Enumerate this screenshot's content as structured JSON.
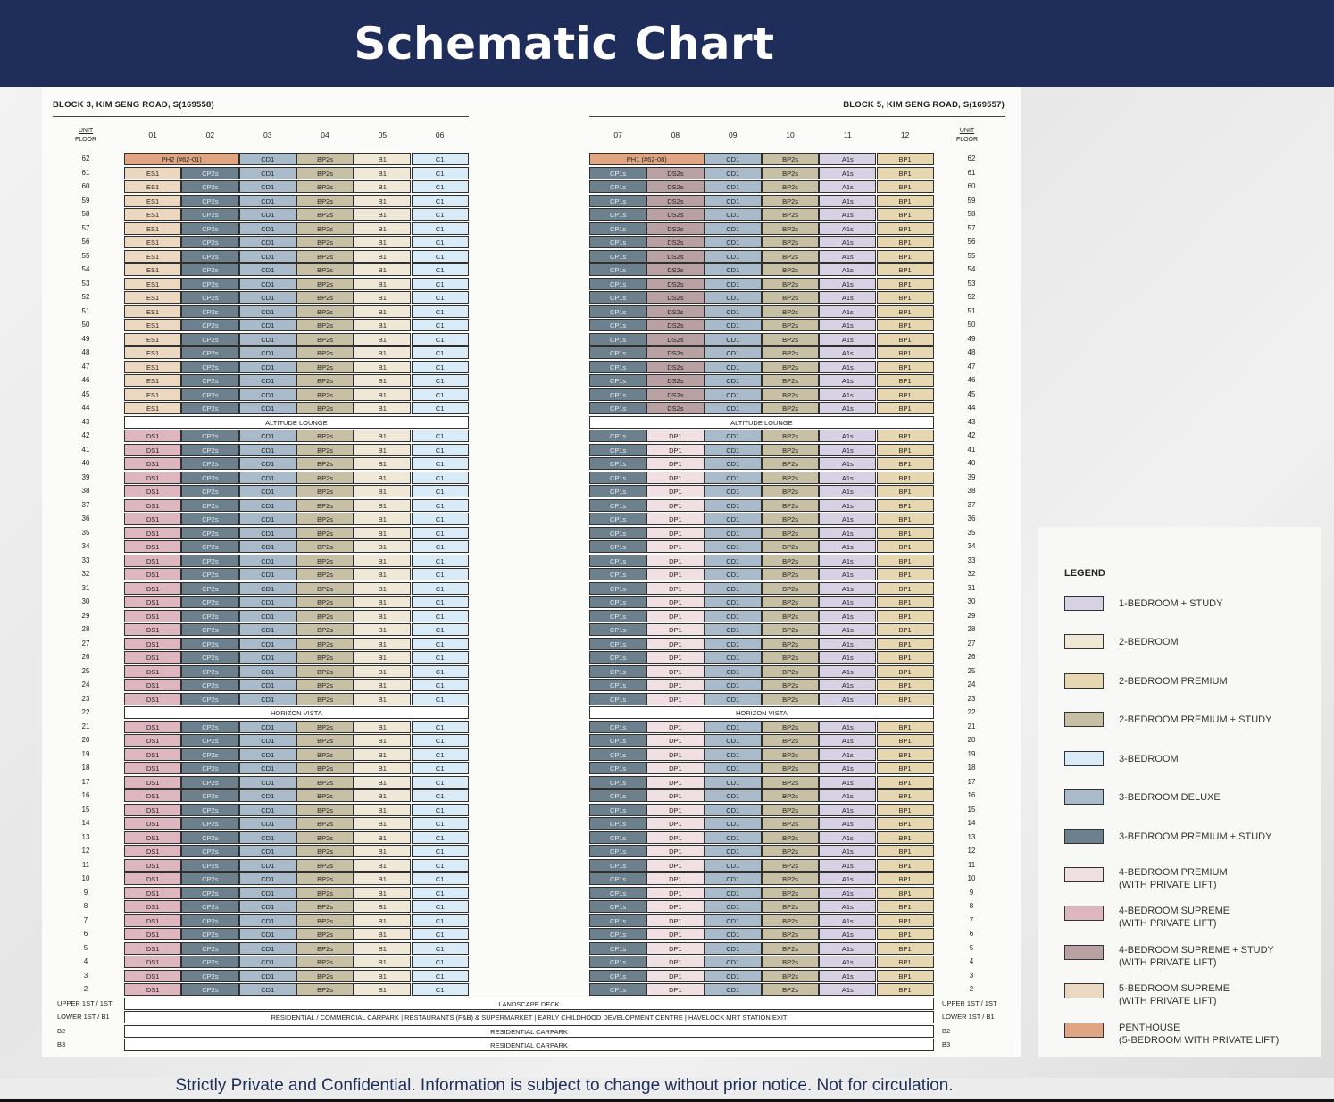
{
  "title": "Schematic Chart",
  "footer": "Strictly Private and Confidential. Information is subject to change without prior notice. Not for circulation.",
  "unit_floor_label": {
    "unit": "UNIT",
    "floor": "FLOOR"
  },
  "colors": {
    "header": "#1f2d5a",
    "A1s": "#d7d2e3",
    "B1": "#efe8d6",
    "BP1": "#e6d7b0",
    "BP2s": "#c7c0a5",
    "C1": "#d8ebf6",
    "CD1": "#a9bbcb",
    "CP2s": "#6d808d",
    "CP1s": "#6d808d",
    "DP1": "#f0dfe3",
    "DS1": "#ddb6bf",
    "DS2s": "#b8a0a3",
    "ES1": "#ecd8c0",
    "PH": "#e0a582"
  },
  "blocks": [
    {
      "name": "BLOCK 3, KIM SENG ROAD, S(169558)",
      "units": [
        "01",
        "02",
        "03",
        "04",
        "05",
        "06"
      ],
      "penthouse": "PH2 (#62-01)",
      "upper_types": [
        "ES1",
        "CP2s",
        "CD1",
        "BP2s",
        "B1",
        "C1"
      ],
      "lower_types": [
        "DS1",
        "CP2s",
        "CD1",
        "BP2s",
        "B1",
        "C1"
      ]
    },
    {
      "name": "BLOCK 5, KIM SENG ROAD, S(169557)",
      "units": [
        "07",
        "08",
        "09",
        "10",
        "11",
        "12"
      ],
      "penthouse": "PH1 (#62-08)",
      "upper_types": [
        "CP1s",
        "DS2s",
        "CD1",
        "BP2s",
        "A1s",
        "BP1"
      ],
      "lower_types": [
        "CP1s",
        "DP1",
        "CD1",
        "BP2s",
        "A1s",
        "BP1"
      ]
    }
  ],
  "floors_upper": [
    62,
    61,
    60,
    59,
    58,
    57,
    56,
    55,
    54,
    53,
    52,
    51,
    50,
    49,
    48,
    47,
    46,
    45,
    44
  ],
  "altitude_lounge": {
    "floor": "43",
    "label": "ALTITUDE LOUNGE"
  },
  "floors_mid": [
    42,
    41,
    40,
    39,
    38,
    37,
    36,
    35,
    34,
    33,
    32,
    31,
    30,
    29,
    28,
    27,
    26,
    25,
    24,
    23
  ],
  "horizon_vista": {
    "floor": "22",
    "label": "HORIZON VISTA"
  },
  "floors_lower": [
    21,
    20,
    19,
    18,
    17,
    16,
    15,
    14,
    13,
    12,
    11,
    10,
    9,
    8,
    7,
    6,
    5,
    4,
    3,
    2
  ],
  "base_levels": [
    {
      "left": "UPPER 1ST / 1ST",
      "right": "UPPER 1ST / 1ST",
      "text": "LANDSCAPE DECK"
    },
    {
      "left": "LOWER 1ST / B1",
      "right": "LOWER 1ST / B1",
      "text": "RESIDENTIAL / COMMERCIAL CARPARK  |  RESTAURANTS (F&B) & SUPERMARKET  |  EARLY CHILDHOOD DEVELOPMENT CENTRE  |  HAVELOCK MRT STATION EXIT"
    },
    {
      "left": "B2",
      "right": "B2",
      "text": "RESIDENTIAL CARPARK"
    },
    {
      "left": "B3",
      "right": "B3",
      "text": "RESIDENTIAL CARPARK"
    }
  ],
  "legend": {
    "title": "LEGEND",
    "items": [
      {
        "label": "1-BEDROOM + STUDY",
        "color": "#d7d2e3"
      },
      {
        "label": "2-BEDROOM",
        "color": "#efe8d6"
      },
      {
        "label": "2-BEDROOM PREMIUM",
        "color": "#e6d7b0"
      },
      {
        "label": "2-BEDROOM PREMIUM + STUDY",
        "color": "#c7c0a5"
      },
      {
        "label": "3-BEDROOM",
        "color": "#d8ebf6"
      },
      {
        "label": "3-BEDROOM DELUXE",
        "color": "#a9bbcb"
      },
      {
        "label": "3-BEDROOM PREMIUM + STUDY",
        "color": "#6d808d"
      },
      {
        "label": "4-BEDROOM PREMIUM\n(WITH PRIVATE LIFT)",
        "color": "#f0dfe3"
      },
      {
        "label": "4-BEDROOM SUPREME\n(WITH PRIVATE LIFT)",
        "color": "#ddb6bf"
      },
      {
        "label": "4-BEDROOM SUPREME + STUDY\n(WITH PRIVATE LIFT)",
        "color": "#b8a0a3"
      },
      {
        "label": "5-BEDROOM SUPREME\n(WITH PRIVATE LIFT)",
        "color": "#ecd8c0"
      },
      {
        "label": "PENTHOUSE\n(5-BEDROOM WITH PRIVATE LIFT)",
        "color": "#e0a582"
      }
    ]
  }
}
